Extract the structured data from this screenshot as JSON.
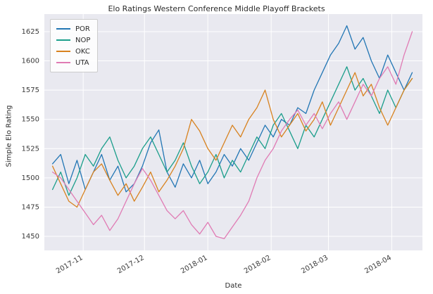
{
  "figure": {
    "title": "Elo Ratings Western Conference Middle Playoff Brackets",
    "xlabel": "Date",
    "ylabel": "Simple Elo Rating"
  },
  "chart_data": {
    "type": "line",
    "title": "Elo Ratings Western Conference Middle Playoff Brackets",
    "xlabel": "Date",
    "ylabel": "Simple Elo Rating",
    "grid": true,
    "plot_background": "#e9e9f0",
    "grid_color": "#ffffff",
    "legend_position": "upper left",
    "x_tick_labels": [
      "2017-11",
      "2017-12",
      "2018-01",
      "2018-02",
      "2018-03",
      "2018-04"
    ],
    "x_tick_days": [
      15,
      45,
      76,
      107,
      135,
      166
    ],
    "y_ticks": [
      1450,
      1475,
      1500,
      1525,
      1550,
      1575,
      1600,
      1625
    ],
    "x_range_days": [
      -4,
      181
    ],
    "y_range": [
      1438,
      1640
    ],
    "x_days": [
      0,
      4,
      8,
      12,
      16,
      20,
      24,
      28,
      32,
      36,
      40,
      44,
      48,
      52,
      56,
      60,
      64,
      68,
      72,
      76,
      80,
      84,
      88,
      92,
      96,
      100,
      104,
      108,
      112,
      116,
      120,
      124,
      128,
      132,
      136,
      140,
      144,
      148,
      152,
      156,
      160,
      164,
      168,
      172,
      176
    ],
    "series": [
      {
        "name": "POR",
        "color": "#2276b4",
        "values": [
          1512,
          1520,
          1495,
          1515,
          1490,
          1505,
          1520,
          1498,
          1510,
          1488,
          1495,
          1510,
          1530,
          1541,
          1505,
          1492,
          1512,
          1500,
          1515,
          1495,
          1505,
          1520,
          1510,
          1525,
          1515,
          1530,
          1545,
          1535,
          1550,
          1545,
          1560,
          1555,
          1575,
          1590,
          1605,
          1615,
          1630,
          1610,
          1620,
          1600,
          1585,
          1605,
          1590,
          1575,
          1590
        ]
      },
      {
        "name": "NOP",
        "color": "#1b9e8b",
        "values": [
          1490,
          1505,
          1485,
          1500,
          1520,
          1510,
          1525,
          1535,
          1515,
          1500,
          1510,
          1525,
          1535,
          1520,
          1505,
          1515,
          1530,
          1510,
          1495,
          1505,
          1520,
          1500,
          1515,
          1505,
          1520,
          1535,
          1525,
          1545,
          1555,
          1540,
          1525,
          1545,
          1535,
          1550,
          1565,
          1580,
          1595,
          1575,
          1585,
          1570,
          1555,
          1575,
          1560,
          1575,
          1585
        ]
      },
      {
        "name": "OKC",
        "color": "#d8821f",
        "values": [
          1510,
          1495,
          1480,
          1475,
          1490,
          1505,
          1512,
          1498,
          1485,
          1495,
          1480,
          1492,
          1505,
          1488,
          1498,
          1510,
          1525,
          1550,
          1540,
          1525,
          1515,
          1530,
          1545,
          1535,
          1550,
          1560,
          1575,
          1550,
          1535,
          1545,
          1555,
          1540,
          1550,
          1565,
          1545,
          1560,
          1575,
          1590,
          1570,
          1580,
          1560,
          1545,
          1560,
          1575,
          1585
        ]
      },
      {
        "name": "UTA",
        "color": "#e07bb4",
        "values": [
          1505,
          1500,
          1490,
          1480,
          1470,
          1460,
          1468,
          1455,
          1465,
          1480,
          1495,
          1508,
          1498,
          1485,
          1472,
          1465,
          1472,
          1460,
          1452,
          1462,
          1450,
          1448,
          1458,
          1468,
          1480,
          1500,
          1515,
          1525,
          1540,
          1550,
          1558,
          1545,
          1555,
          1542,
          1555,
          1565,
          1550,
          1565,
          1580,
          1570,
          1585,
          1595,
          1580,
          1605,
          1625
        ]
      }
    ]
  }
}
